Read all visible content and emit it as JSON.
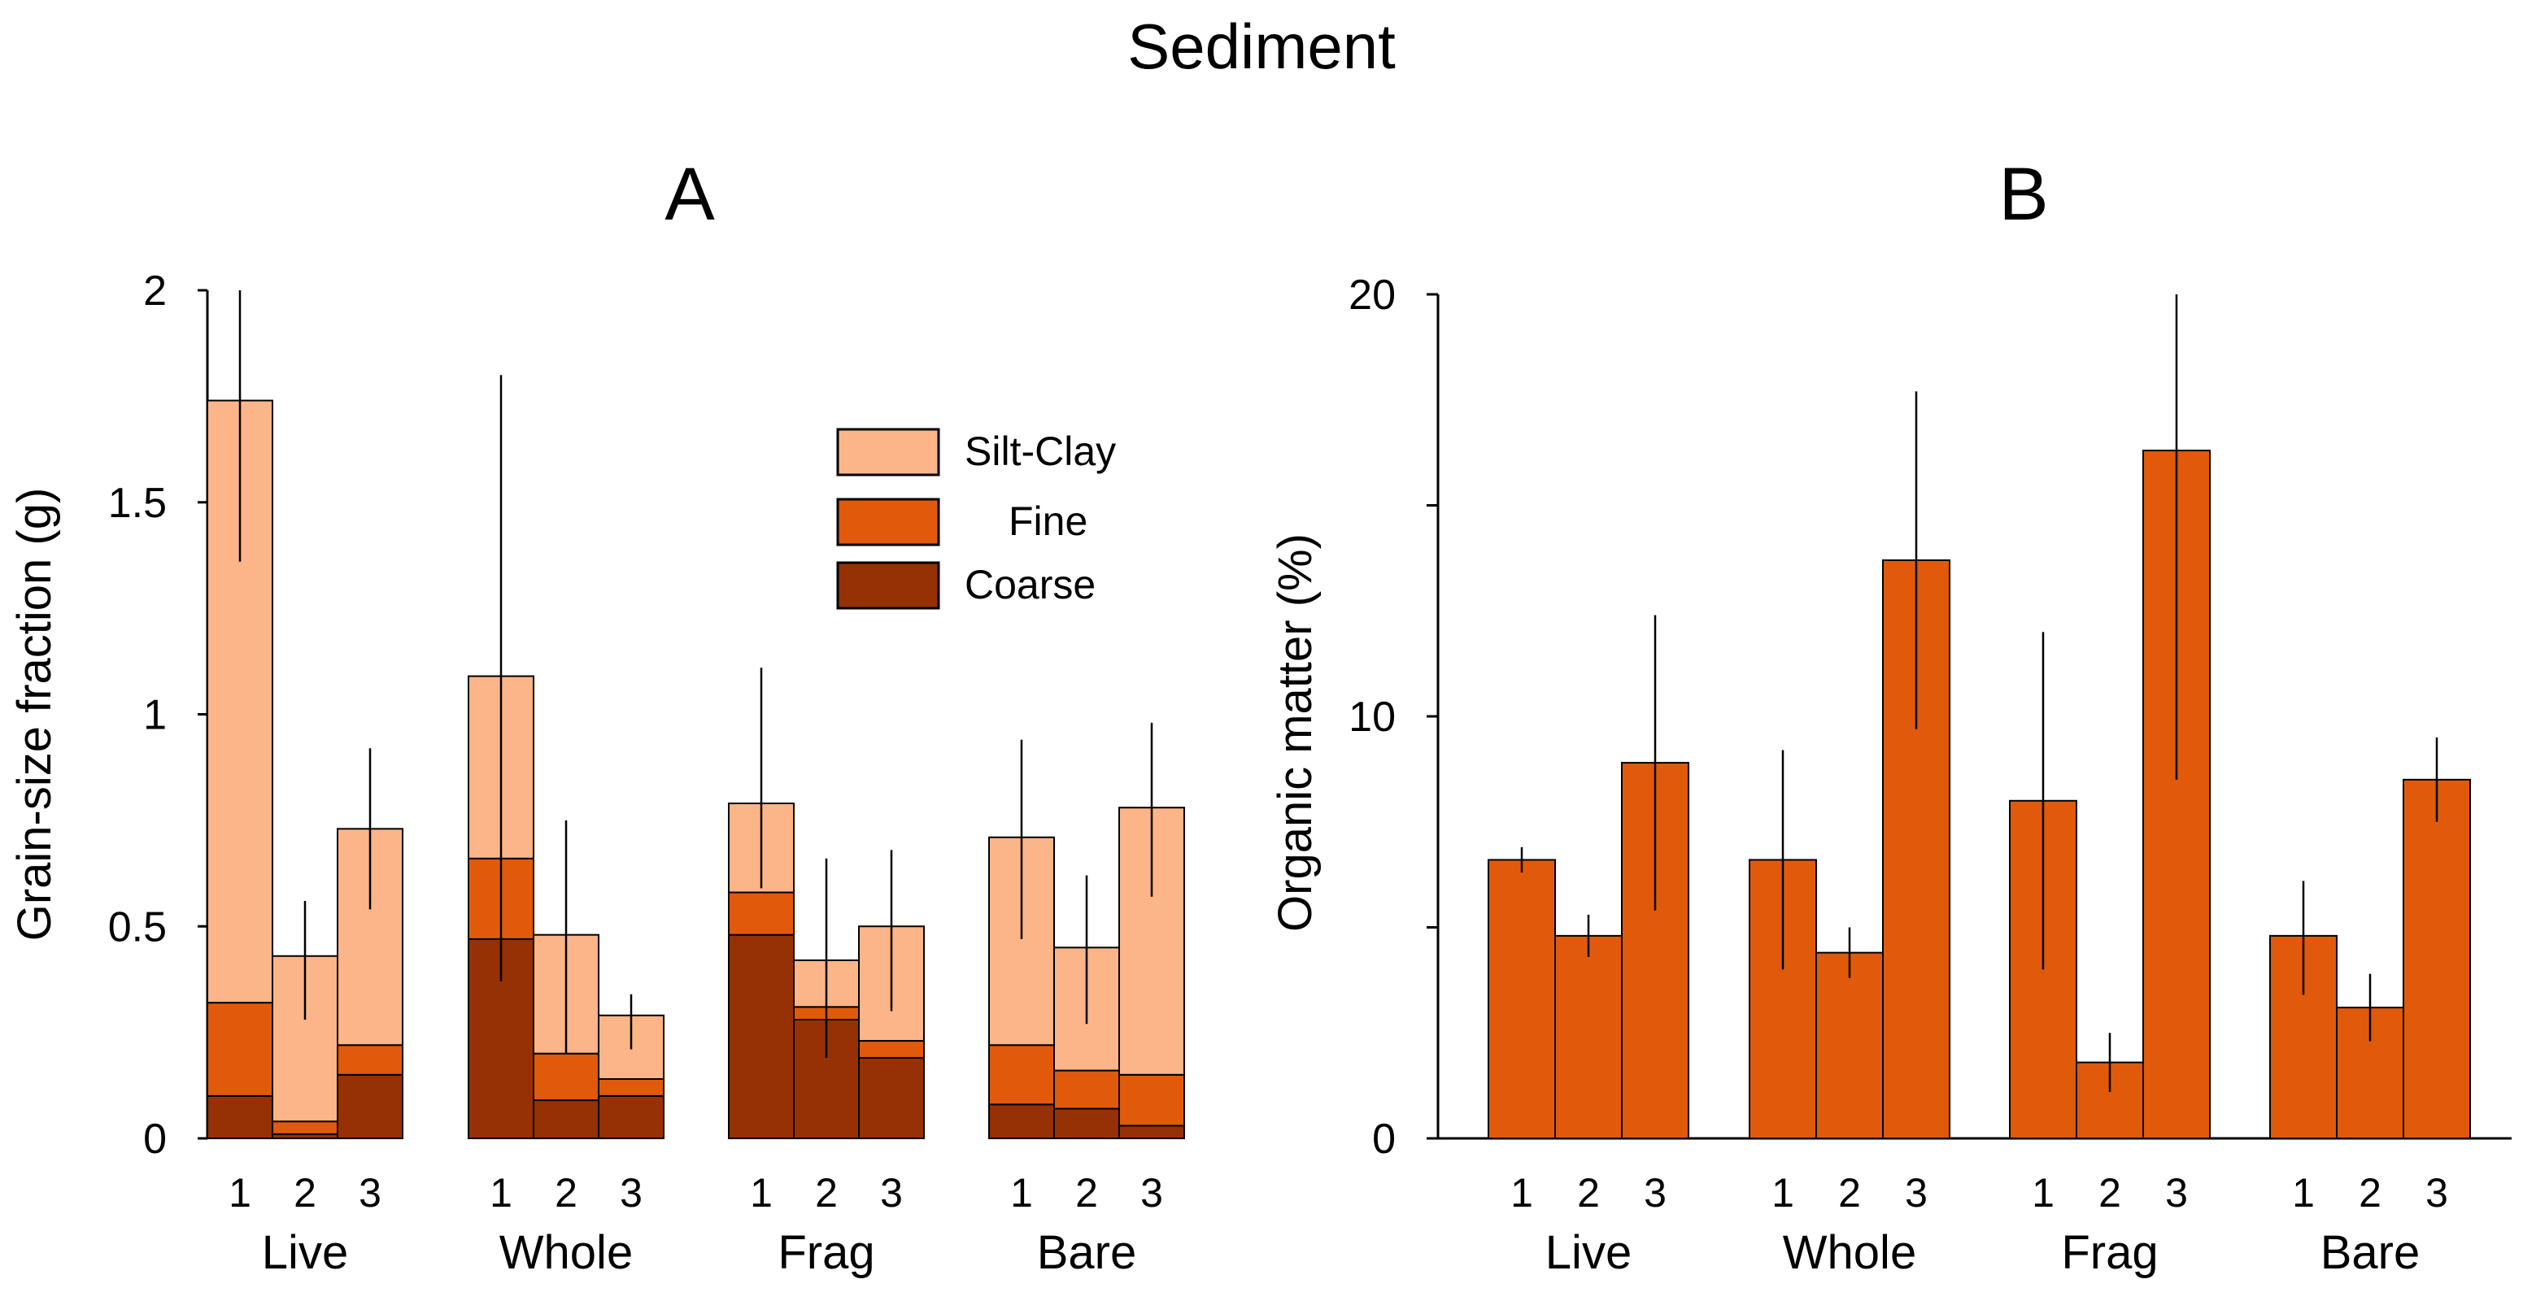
{
  "figure_title": "Sediment",
  "colors": {
    "silt_clay": "#fbb589",
    "fine": "#e15a0c",
    "coarse": "#963105",
    "organic": "#e15a0c"
  },
  "chart_data": [
    {
      "panel": "A",
      "type": "bar",
      "stacked": true,
      "title": "A",
      "xlabel": "",
      "ylabel": "Grain-size fraction (g)",
      "ylim": [
        0,
        2
      ],
      "yticks": [
        "0",
        "0.5",
        "1",
        "1.5",
        "2"
      ],
      "groups": [
        "Live",
        "Whole",
        "Frag",
        "Bare"
      ],
      "categories": [
        "1",
        "2",
        "3"
      ],
      "legend": {
        "position": "upper-middle",
        "entries": [
          "Silt-Clay",
          "Fine",
          "Coarse"
        ]
      },
      "series": [
        {
          "name": "Coarse",
          "values": [
            [
              0.1,
              0.01,
              0.15
            ],
            [
              0.47,
              0.09,
              0.1
            ],
            [
              0.48,
              0.28,
              0.19
            ],
            [
              0.08,
              0.07,
              0.03
            ]
          ]
        },
        {
          "name": "Fine",
          "values": [
            [
              0.22,
              0.03,
              0.07
            ],
            [
              0.19,
              0.11,
              0.04
            ],
            [
              0.1,
              0.03,
              0.04
            ],
            [
              0.14,
              0.09,
              0.12
            ]
          ]
        },
        {
          "name": "Silt-Clay",
          "values": [
            [
              1.42,
              0.39,
              0.51
            ],
            [
              0.43,
              0.28,
              0.15
            ],
            [
              0.21,
              0.11,
              0.27
            ],
            [
              0.49,
              0.29,
              0.63
            ]
          ]
        }
      ],
      "totals": [
        [
          1.74,
          0.43,
          0.73
        ],
        [
          1.09,
          0.48,
          0.29
        ],
        [
          0.79,
          0.42,
          0.5
        ],
        [
          0.71,
          0.45,
          0.78
        ]
      ],
      "error_low": [
        [
          1.36,
          0.28,
          0.54
        ],
        [
          0.37,
          0.2,
          0.21
        ],
        [
          0.59,
          0.19,
          0.3
        ],
        [
          0.47,
          0.27,
          0.57
        ]
      ],
      "error_high": [
        [
          2.0,
          0.56,
          0.92
        ],
        [
          1.8,
          0.75,
          0.34
        ],
        [
          1.11,
          0.66,
          0.68
        ],
        [
          0.94,
          0.62,
          0.98
        ]
      ]
    },
    {
      "panel": "B",
      "type": "bar",
      "title": "B",
      "xlabel": "",
      "ylabel": "Organic  matter (%)",
      "ylim": [
        0,
        20
      ],
      "yticks": [
        "0",
        "10",
        "20"
      ],
      "groups": [
        "Live",
        "Whole",
        "Frag",
        "Bare"
      ],
      "categories": [
        "1",
        "2",
        "3"
      ],
      "values": [
        [
          6.6,
          4.8,
          8.9
        ],
        [
          6.6,
          4.4,
          13.7
        ],
        [
          8.0,
          1.8,
          16.3
        ],
        [
          4.8,
          3.1,
          8.5
        ]
      ],
      "error_low": [
        [
          6.3,
          4.3,
          5.4
        ],
        [
          4.0,
          3.8,
          9.7
        ],
        [
          4.0,
          1.1,
          8.5
        ],
        [
          3.4,
          2.3,
          7.5
        ]
      ],
      "error_high": [
        [
          6.9,
          5.3,
          12.4
        ],
        [
          9.2,
          5.0,
          17.7
        ],
        [
          12.0,
          2.5,
          20.0
        ],
        [
          6.1,
          3.9,
          9.5
        ]
      ]
    }
  ]
}
